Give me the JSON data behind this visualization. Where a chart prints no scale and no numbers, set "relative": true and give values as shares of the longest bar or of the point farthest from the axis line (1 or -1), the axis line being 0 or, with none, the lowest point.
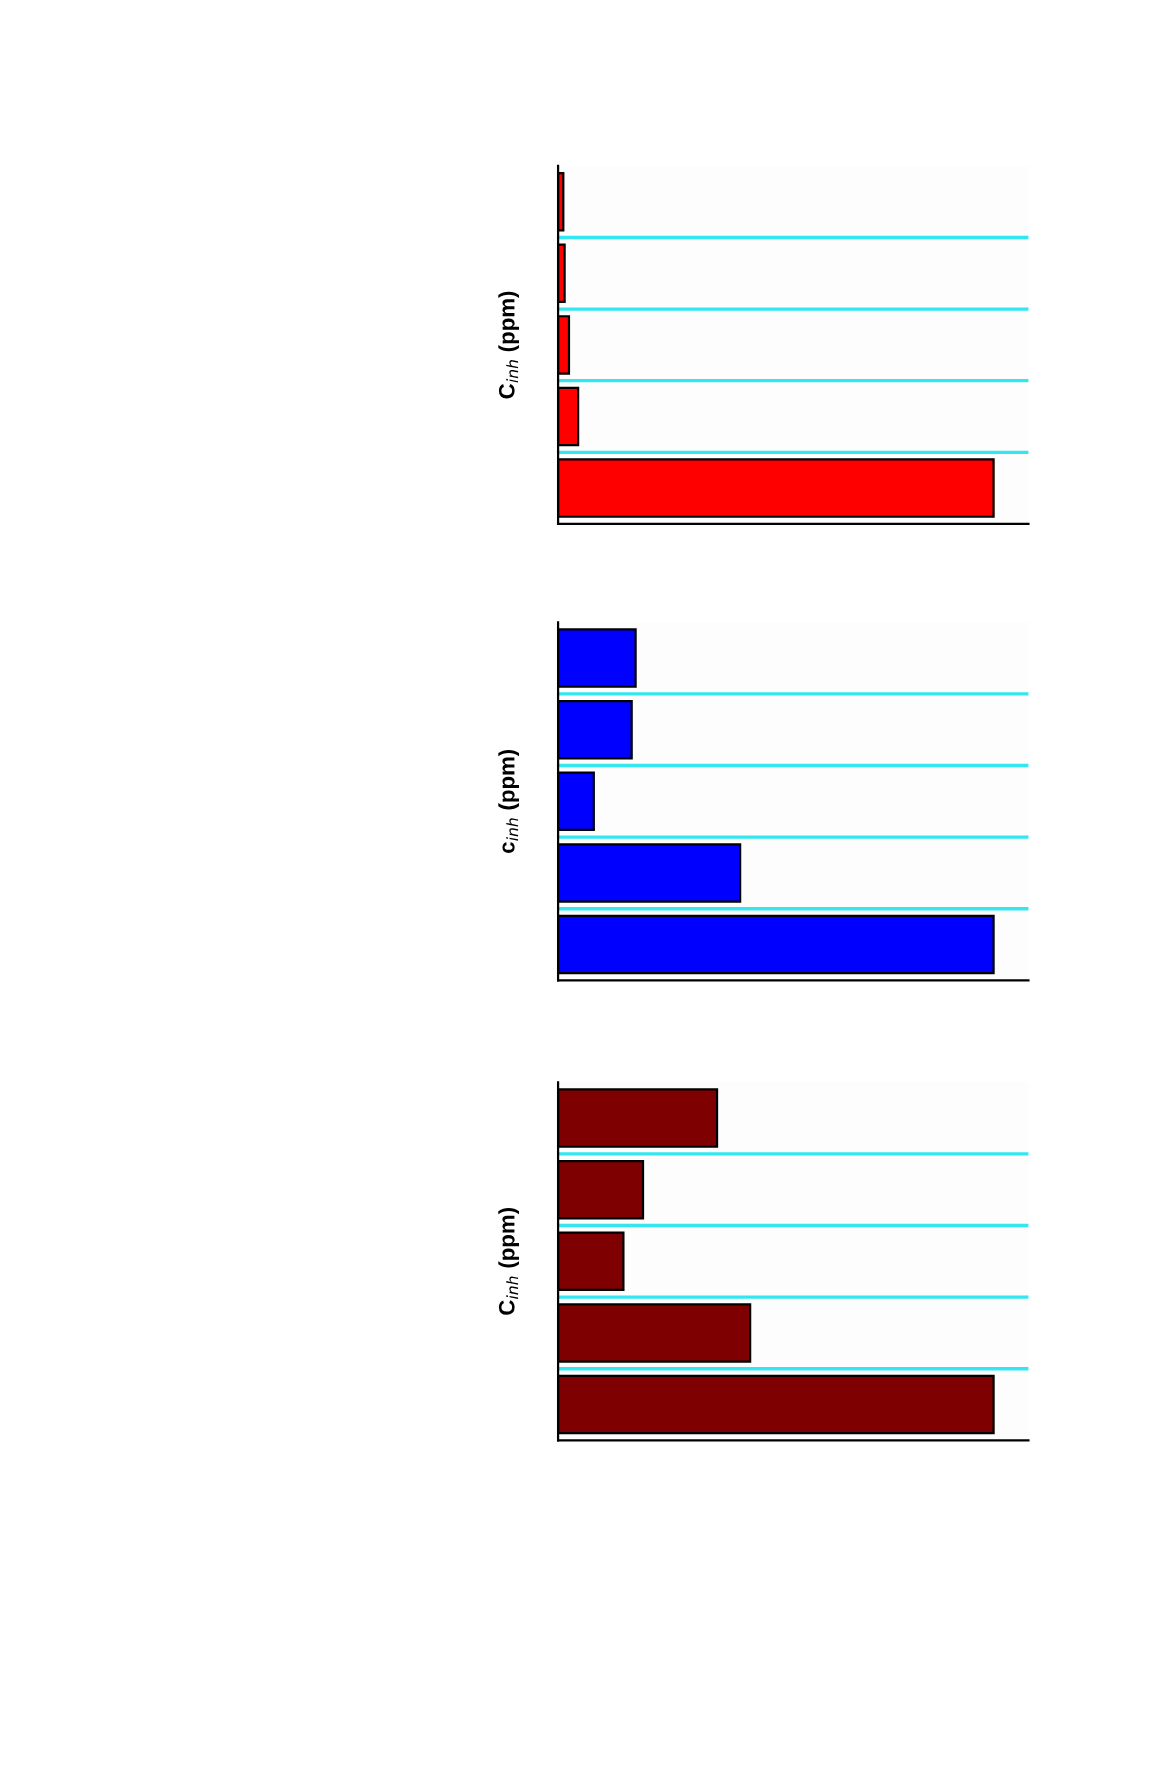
{
  "chart_data": [
    {
      "type": "bar",
      "orientation": "horizontal",
      "relative": true,
      "ylabel": "C$_{inh}$ (ppm)",
      "categories": [
        null,
        null,
        null,
        null,
        null
      ],
      "color": "#ff0000",
      "values": [
        0.012,
        0.015,
        0.025,
        0.046,
        1
      ],
      "grid": "y",
      "tick_labels": false
    },
    {
      "type": "bar",
      "orientation": "horizontal",
      "relative": true,
      "ylabel": "c$_{inh}$ (ppm)",
      "categories": [
        null,
        null,
        null,
        null,
        null
      ],
      "color": "#0000ff",
      "values": [
        0.178,
        0.169,
        0.082,
        0.418,
        1
      ],
      "grid": "y",
      "tick_labels": false
    },
    {
      "type": "bar",
      "orientation": "horizontal",
      "relative": true,
      "ylabel": "C$_{inh}$ (ppm)",
      "categories": [
        null,
        null,
        null,
        null,
        null
      ],
      "color": "#7f0000",
      "values": [
        0.365,
        0.195,
        0.15,
        0.441,
        1
      ],
      "grid": "y",
      "tick_labels": false
    }
  ]
}
